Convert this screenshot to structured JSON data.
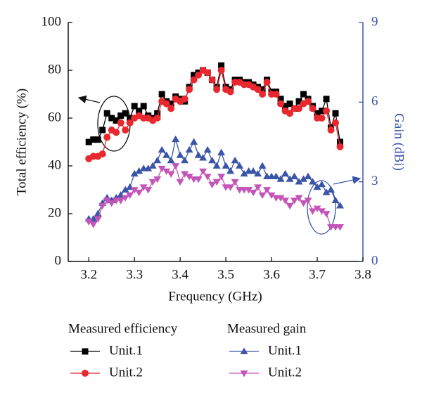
{
  "chart_data": {
    "type": "line",
    "x_label": "Frequency (GHz)",
    "y_label": "Total efficiency (%)",
    "y2_label": "Gain (dBi)",
    "x": [
      3.2,
      3.21,
      3.22,
      3.23,
      3.24,
      3.25,
      3.26,
      3.27,
      3.28,
      3.29,
      3.3,
      3.31,
      3.32,
      3.33,
      3.34,
      3.35,
      3.36,
      3.37,
      3.38,
      3.39,
      3.4,
      3.41,
      3.42,
      3.43,
      3.44,
      3.45,
      3.46,
      3.47,
      3.48,
      3.49,
      3.5,
      3.51,
      3.52,
      3.53,
      3.54,
      3.55,
      3.56,
      3.57,
      3.58,
      3.59,
      3.6,
      3.61,
      3.62,
      3.63,
      3.64,
      3.65,
      3.66,
      3.67,
      3.68,
      3.69,
      3.7,
      3.71,
      3.72,
      3.73,
      3.74,
      3.75
    ],
    "xlim": [
      3.155,
      3.8
    ],
    "xticks": [
      3.2,
      3.3,
      3.4,
      3.5,
      3.6,
      3.7,
      3.8
    ],
    "ylim": [
      0,
      100
    ],
    "yticks": [
      0,
      20,
      40,
      60,
      80,
      100
    ],
    "y2lim": [
      0,
      9
    ],
    "y2ticks": [
      0,
      3,
      6,
      9
    ],
    "y2_color": "#3a55a8",
    "legend_groups": [
      "Measured efficiency",
      "Measured gain"
    ],
    "series": [
      {
        "name": "Unit.1",
        "color": "#000000",
        "marker": "square",
        "values": [
          50,
          51,
          51,
          55,
          62,
          60,
          59,
          61,
          62,
          60,
          65,
          63,
          65,
          61,
          60,
          62,
          70,
          67,
          66,
          69,
          68,
          67,
          73,
          78,
          79,
          80,
          79,
          76,
          73,
          82,
          73,
          72,
          76,
          76,
          75,
          75,
          74,
          73,
          72,
          76,
          71,
          71,
          68,
          65,
          66,
          64,
          67,
          70,
          68,
          65,
          62,
          63,
          68,
          56,
          62,
          50
        ]
      },
      {
        "name": "Unit.2",
        "color": "#e8282e",
        "marker": "circle",
        "values": [
          43,
          44,
          44,
          45,
          52,
          55,
          54,
          58,
          55,
          58,
          60,
          61,
          60,
          60,
          59,
          60,
          67,
          66,
          64,
          68,
          67,
          68,
          72,
          76,
          78,
          80,
          79,
          76,
          72,
          80,
          72,
          71,
          75,
          75,
          74,
          74,
          73,
          72,
          70,
          75,
          70,
          70,
          66,
          63,
          62,
          64,
          64,
          66,
          67,
          64,
          60,
          60,
          63,
          55,
          58,
          48
        ]
      },
      {
        "name": "Unit.1",
        "color": "#3a55a8",
        "marker": "triangle-up",
        "axis": "y2",
        "values": [
          1.6,
          1.6,
          1.8,
          2.2,
          2.4,
          2.3,
          2.4,
          2.5,
          2.7,
          2.8,
          3.3,
          3.4,
          3.5,
          3.5,
          3.6,
          3.8,
          4.2,
          4.0,
          3.8,
          4.6,
          4.0,
          3.8,
          4.2,
          4.5,
          4.0,
          3.9,
          4.2,
          3.8,
          3.6,
          4.1,
          3.6,
          3.4,
          3.8,
          3.6,
          3.3,
          3.4,
          3.4,
          3.3,
          3.6,
          3.2,
          3.2,
          3.2,
          3.1,
          3.3,
          3.1,
          3.2,
          3.0,
          3.1,
          3.2,
          3.0,
          2.8,
          2.9,
          2.6,
          2.7,
          2.3,
          2.1
        ]
      },
      {
        "name": "Unit.2",
        "color": "#c455b8",
        "marker": "triangle-down",
        "axis": "y2",
        "values": [
          1.5,
          1.4,
          1.6,
          2.1,
          2.3,
          2.2,
          2.3,
          2.3,
          2.4,
          2.5,
          2.7,
          2.6,
          2.8,
          2.7,
          3.0,
          3.1,
          3.5,
          3.4,
          3.3,
          3.6,
          3.0,
          3.3,
          3.2,
          3.1,
          3.1,
          3.4,
          3.2,
          2.9,
          3.0,
          3.2,
          2.8,
          2.8,
          3.0,
          2.7,
          2.7,
          2.7,
          2.6,
          2.8,
          2.5,
          2.7,
          2.5,
          2.4,
          2.4,
          2.3,
          2.1,
          2.3,
          2.4,
          2.2,
          2.3,
          1.9,
          2.0,
          1.9,
          1.8,
          1.3,
          1.3,
          1.3
        ]
      }
    ]
  }
}
